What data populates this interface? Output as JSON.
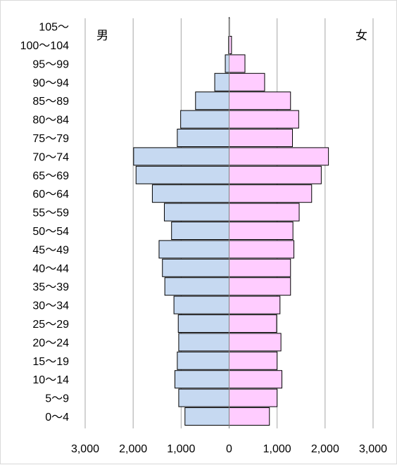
{
  "chart_data": {
    "type": "bar",
    "orientation": "horizontal",
    "subtype": "population-pyramid",
    "categories": [
      "0〜4",
      "5〜9",
      "10〜14",
      "15〜19",
      "20〜24",
      "25〜29",
      "30〜34",
      "35〜39",
      "40〜44",
      "45〜49",
      "50〜54",
      "55〜59",
      "60〜64",
      "65〜69",
      "70〜74",
      "75〜79",
      "80〜84",
      "85〜89",
      "90〜94",
      "95〜99",
      "100〜104",
      "105〜"
    ],
    "series": [
      {
        "name": "男",
        "side": "left",
        "color": "#c6d9f1",
        "values": [
          920,
          1050,
          1130,
          1080,
          1050,
          1060,
          1150,
          1340,
          1390,
          1460,
          1200,
          1350,
          1600,
          1940,
          1990,
          1080,
          1010,
          700,
          300,
          80,
          10,
          2
        ]
      },
      {
        "name": "女",
        "side": "right",
        "color": "#ffccff",
        "values": [
          840,
          1000,
          1100,
          1000,
          1080,
          990,
          1060,
          1280,
          1280,
          1350,
          1330,
          1460,
          1720,
          1920,
          2070,
          1320,
          1450,
          1280,
          740,
          330,
          50,
          5
        ]
      }
    ],
    "xticks": [
      "3,000",
      "2,000",
      "1,000",
      "0",
      "1,000",
      "2,000",
      "3,000"
    ],
    "xlim": [
      -3000,
      3000
    ],
    "grid": "vertical",
    "bar_outline": "#000000",
    "gridline_color": "#a6a6a6"
  }
}
